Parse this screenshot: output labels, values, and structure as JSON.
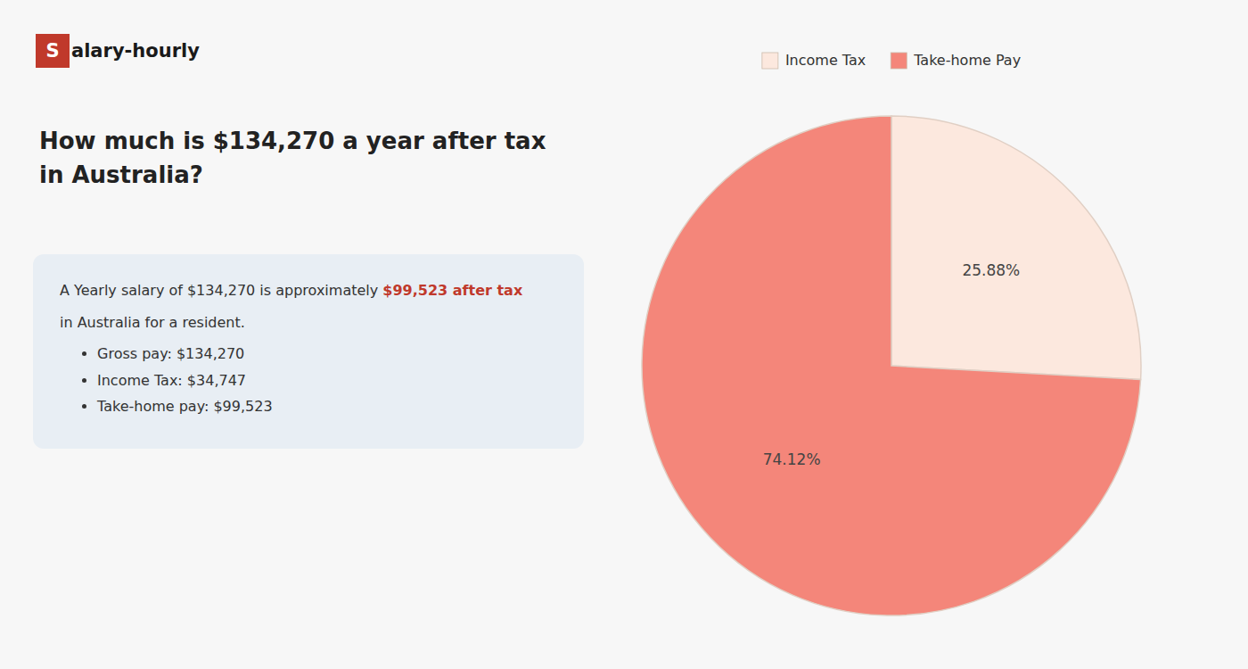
{
  "chart_data": {
    "type": "pie",
    "title": "How much is $134,270 a year after tax in Australia?",
    "annotations": [
      "S",
      "alary-hourly",
      "A Yearly salary of $134,270 is approximately ",
      "$99,523 after tax",
      "in Australia for a resident.",
      "Gross pay: $134,270",
      "Income Tax: $34,747",
      "Take-home pay: $99,523"
    ],
    "categories": [
      "Income Tax",
      "Take-home Pay"
    ],
    "values": [
      25.88,
      74.12
    ],
    "value_labels": [
      "25.88%",
      "74.12%"
    ],
    "colors": [
      "#fce8de",
      "#f4867a"
    ],
    "data_labels": true,
    "legend": "top"
  }
}
